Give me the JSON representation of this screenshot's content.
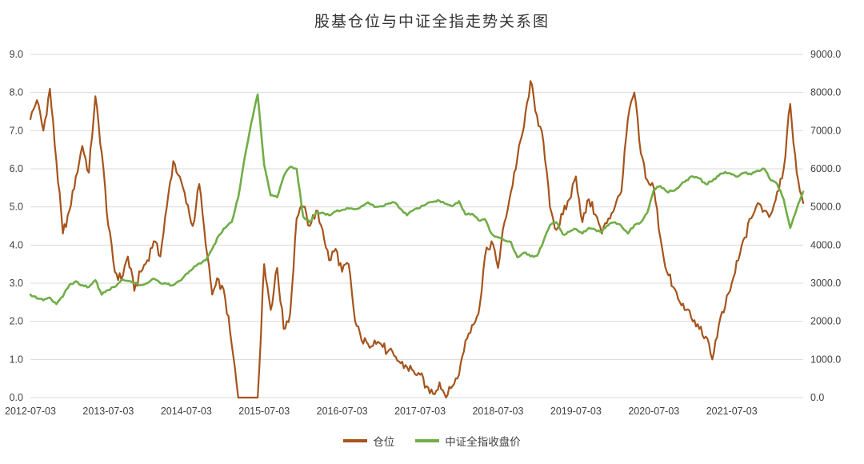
{
  "theme": {
    "background": "#FFFFFF",
    "grid": "#D9D9D9",
    "text": "#404040",
    "title_color": "#333333"
  },
  "axes": {
    "left": {
      "range": [
        0,
        9
      ],
      "ticks": [
        "0.0",
        "1.0",
        "2.0",
        "3.0",
        "4.0",
        "5.0",
        "6.0",
        "7.0",
        "8.0",
        "9.0"
      ]
    },
    "right": {
      "range": [
        0,
        9000
      ],
      "ticks": [
        "0.0",
        "1000.0",
        "2000.0",
        "3000.0",
        "4000.0",
        "5000.0",
        "6000.0",
        "7000.0",
        "8000.0",
        "9000.0"
      ]
    },
    "x": {
      "ticks": [
        "2012-07-03",
        "2013-07-03",
        "2014-07-03",
        "2015-07-03",
        "2016-07-03",
        "2017-07-03",
        "2018-07-03",
        "2019-07-03",
        "2020-07-03",
        "2021-07-03"
      ]
    }
  },
  "chart_data": {
    "type": "line",
    "title": "股基仓位与中证全指走势关系图",
    "xlabel": "",
    "ylabel_left": "",
    "ylabel_right": "",
    "ylim_left": [
      0,
      9
    ],
    "ylim_right": [
      0,
      9000
    ],
    "grid": true,
    "legend_position": "bottom",
    "x_unit": "month",
    "x": [
      "2012-07",
      "2012-08",
      "2012-09",
      "2012-10",
      "2012-11",
      "2012-12",
      "2013-01",
      "2013-02",
      "2013-03",
      "2013-04",
      "2013-05",
      "2013-06",
      "2013-07",
      "2013-08",
      "2013-09",
      "2013-10",
      "2013-11",
      "2013-12",
      "2014-01",
      "2014-02",
      "2014-03",
      "2014-04",
      "2014-05",
      "2014-06",
      "2014-07",
      "2014-08",
      "2014-09",
      "2014-10",
      "2014-11",
      "2014-12",
      "2015-01",
      "2015-02",
      "2015-03",
      "2015-04",
      "2015-05",
      "2015-06",
      "2015-07",
      "2015-08",
      "2015-09",
      "2015-10",
      "2015-11",
      "2015-12",
      "2016-01",
      "2016-02",
      "2016-03",
      "2016-04",
      "2016-05",
      "2016-06",
      "2016-07",
      "2016-08",
      "2016-09",
      "2016-10",
      "2016-11",
      "2016-12",
      "2017-01",
      "2017-02",
      "2017-03",
      "2017-04",
      "2017-05",
      "2017-06",
      "2017-07",
      "2017-08",
      "2017-09",
      "2017-10",
      "2017-11",
      "2017-12",
      "2018-01",
      "2018-02",
      "2018-03",
      "2018-04",
      "2018-05",
      "2018-06",
      "2018-07",
      "2018-08",
      "2018-09",
      "2018-10",
      "2018-11",
      "2018-12",
      "2019-01",
      "2019-02",
      "2019-03",
      "2019-04",
      "2019-05",
      "2019-06",
      "2019-07",
      "2019-08",
      "2019-09",
      "2019-10",
      "2019-11",
      "2019-12",
      "2020-01",
      "2020-02",
      "2020-03",
      "2020-04",
      "2020-05",
      "2020-06",
      "2020-07",
      "2020-08",
      "2020-09",
      "2020-10",
      "2020-11",
      "2020-12",
      "2021-01",
      "2021-02",
      "2021-03",
      "2021-04",
      "2021-05",
      "2021-06",
      "2021-07",
      "2021-08",
      "2021-09",
      "2021-10",
      "2021-11",
      "2021-12",
      "2022-01",
      "2022-02",
      "2022-03",
      "2022-04",
      "2022-05",
      "2022-06"
    ],
    "series": [
      {
        "name": "仓位",
        "axis": "left",
        "color": "#A5541C",
        "values": [
          7.3,
          7.8,
          7.0,
          8.1,
          6.2,
          4.3,
          4.9,
          5.8,
          6.6,
          5.9,
          7.9,
          6.4,
          4.5,
          3.3,
          3.1,
          3.7,
          2.8,
          3.3,
          3.6,
          4.1,
          3.7,
          5.0,
          6.2,
          5.8,
          5.1,
          4.5,
          5.6,
          4.0,
          2.7,
          3.1,
          2.6,
          1.4,
          0.0,
          0.0,
          0.0,
          0.0,
          3.5,
          2.3,
          3.4,
          1.8,
          2.2,
          4.7,
          5.0,
          4.5,
          4.9,
          4.4,
          3.6,
          3.9,
          3.3,
          3.5,
          2.0,
          1.5,
          1.4,
          1.5,
          1.4,
          1.2,
          1.1,
          0.9,
          0.8,
          0.7,
          0.6,
          0.3,
          0.1,
          0.4,
          0.0,
          0.3,
          0.6,
          1.5,
          1.9,
          2.2,
          3.7,
          4.1,
          3.4,
          4.6,
          5.4,
          6.3,
          7.1,
          8.3,
          7.4,
          6.7,
          5.0,
          4.4,
          4.8,
          5.2,
          5.8,
          4.6,
          5.2,
          4.8,
          4.3,
          4.7,
          5.0,
          5.4,
          7.3,
          8.0,
          6.4,
          5.7,
          5.5,
          4.2,
          3.3,
          2.9,
          2.5,
          2.3,
          2.0,
          1.8,
          1.6,
          1.0,
          1.9,
          2.4,
          3.0,
          3.6,
          4.2,
          4.7,
          5.1,
          4.9,
          4.8,
          5.4,
          6.0,
          7.7,
          5.9,
          5.1
        ]
      },
      {
        "name": "中证全指收盘价",
        "axis": "right",
        "color": "#70AD47",
        "values": [
          2700,
          2600,
          2550,
          2620,
          2450,
          2650,
          2950,
          3050,
          2950,
          2900,
          3080,
          2700,
          2820,
          2900,
          3080,
          3060,
          3000,
          2950,
          3000,
          3120,
          3000,
          2980,
          2950,
          3060,
          3250,
          3380,
          3520,
          3600,
          3900,
          4250,
          4450,
          4600,
          5250,
          6300,
          7200,
          7950,
          6100,
          5300,
          5250,
          5800,
          6050,
          6000,
          4750,
          4600,
          4850,
          4850,
          4780,
          4880,
          4920,
          4960,
          4940,
          5020,
          5120,
          5000,
          5020,
          5080,
          5120,
          4950,
          4780,
          4920,
          4980,
          5080,
          5130,
          5160,
          5080,
          5020,
          5150,
          4800,
          4820,
          4650,
          4680,
          4300,
          4200,
          4120,
          4080,
          3680,
          3800,
          3700,
          3720,
          4100,
          4520,
          4600,
          4280,
          4350,
          4420,
          4300,
          4450,
          4400,
          4350,
          4520,
          4600,
          4500,
          4300,
          4520,
          4600,
          4850,
          5450,
          5550,
          5400,
          5420,
          5550,
          5700,
          5800,
          5750,
          5600,
          5680,
          5820,
          5920,
          5850,
          5800,
          5900,
          5850,
          5950,
          6000,
          5700,
          5600,
          5200,
          4450,
          4950,
          5400
        ]
      }
    ]
  }
}
